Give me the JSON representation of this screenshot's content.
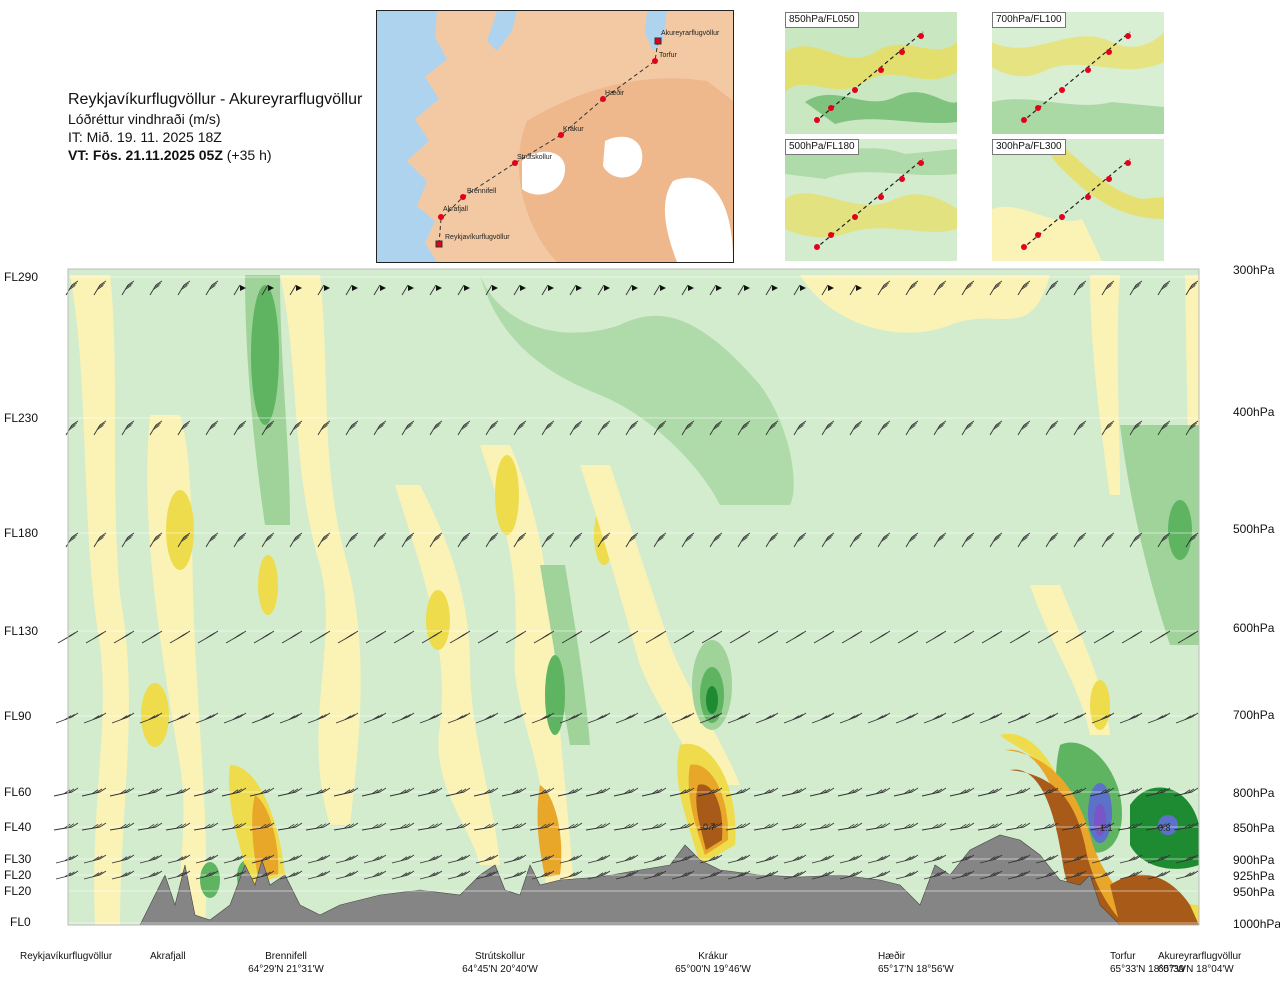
{
  "header": {
    "route": "Reykjavíkurflugvöllur - Akureyrarflugvöllur",
    "parameter": "Lóðréttur vindhraði (m/s)",
    "analysis": "IT: Mið. 19. 11. 2025 18Z",
    "valid_bold": "VT: Fös. 21.11.2025 05Z",
    "valid_offset": "(+35 h)"
  },
  "map": {
    "waypoints": [
      "Akureyrarflugvöllur",
      "Torfur",
      "Hæðir",
      "Krákur",
      "Strútskollur",
      "Brennifell",
      "Akrafjall",
      "Reykjavíkurflugvöllur"
    ],
    "colors": {
      "sea": "#aed3ef",
      "land": "#f3c9a4",
      "high_land": "#e9a878",
      "glacier": "#ffffff",
      "route": "#333333",
      "point": "#e3001b"
    }
  },
  "insets": [
    {
      "label": "850hPa/FL050"
    },
    {
      "label": "700hPa/FL100"
    },
    {
      "label": "500hPa/FL180"
    },
    {
      "label": "300hPa/FL300"
    }
  ],
  "left_axis": [
    "FL290",
    "FL230",
    "FL180",
    "FL130",
    "FL90",
    "FL60",
    "FL40",
    "FL30",
    "FL20",
    "FL20",
    "FL0"
  ],
  "right_axis": [
    "300hPa",
    "400hPa",
    "500hPa",
    "600hPa",
    "700hPa",
    "800hPa",
    "850hPa",
    "900hPa",
    "925hPa",
    "950hPa",
    "1000hPa"
  ],
  "stations": [
    {
      "name": "Reykjavíkurflugvöllur",
      "coord": ""
    },
    {
      "name": "Akrafjall",
      "coord": ""
    },
    {
      "name": "Brennifell",
      "coord": "64°29'N 21°31'W"
    },
    {
      "name": "Strútskollur",
      "coord": "64°45'N 20°40'W"
    },
    {
      "name": "Krákur",
      "coord": "65°00'N 19°46'W"
    },
    {
      "name": "Hæðir",
      "coord": "65°17'N 18°56'W"
    },
    {
      "name": "Torfur",
      "coord": "65°33'N 18°07'W"
    },
    {
      "name": "Akureyrarflugvöllur",
      "coord": "65°39'N 18°04'W"
    }
  ],
  "chart_data": {
    "type": "heatmap",
    "title": "Lóðréttur vindhraði (m/s)",
    "x_labels": [
      "Reykjavíkurflugvöllur",
      "Akrafjall",
      "Brennifell",
      "Strútskollur",
      "Krákur",
      "Hæðir",
      "Torfur",
      "Akureyrarflugvöllur"
    ],
    "y_labels_left": [
      "FL290",
      "FL230",
      "FL180",
      "FL130",
      "FL90",
      "FL60",
      "FL40",
      "FL30",
      "FL20",
      "FL20",
      "FL0"
    ],
    "y_labels_right": [
      "300hPa",
      "400hPa",
      "500hPa",
      "600hPa",
      "700hPa",
      "800hPa",
      "850hPa",
      "900hPa",
      "925hPa",
      "950hPa",
      "1000hPa"
    ],
    "contour_labels": [
      "-0.7",
      "1.1",
      "0.8"
    ],
    "colors": {
      "light_green": "#d3ecce",
      "mid_green": "#9fd39a",
      "green": "#5fb462",
      "dark_green": "#1e8b32",
      "blue": "#5b72c8",
      "purple": "#7a55c8",
      "pale_yellow": "#fbf3b6",
      "yellow": "#eedc4c",
      "orange": "#e9a72a",
      "brown": "#a85a18",
      "dark_brown": "#6e3211",
      "terrain": "#858585"
    }
  }
}
